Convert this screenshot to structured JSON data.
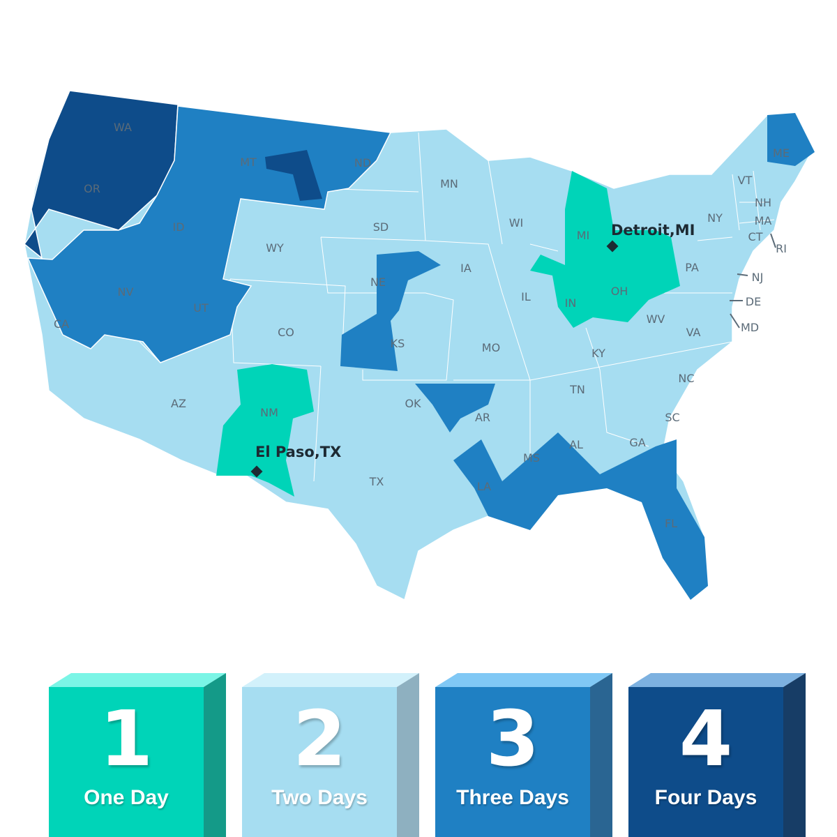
{
  "colors": {
    "one_day": "#00d4b8",
    "two_days": "#a6ddf1",
    "three_days": "#1f80c3",
    "four_days": "#0e4c8a"
  },
  "states": [
    "WA",
    "OR",
    "CA",
    "MT",
    "ID",
    "NV",
    "WY",
    "UT",
    "AZ",
    "CO",
    "NM",
    "ND",
    "SD",
    "NE",
    "KS",
    "OK",
    "TX",
    "MN",
    "IA",
    "MO",
    "AR",
    "LA",
    "WI",
    "IL",
    "MI",
    "IN",
    "OH",
    "KY",
    "TN",
    "MS",
    "AL",
    "GA",
    "FL",
    "SC",
    "NC",
    "VA",
    "WV",
    "PA",
    "NY",
    "VT",
    "NH",
    "ME",
    "MA",
    "CT",
    "RI",
    "NJ",
    "DE",
    "MD"
  ],
  "cities": [
    {
      "name": "Detroit,MI"
    },
    {
      "name": "El Paso,TX"
    }
  ],
  "legend": [
    {
      "number": "1",
      "label": "One Day"
    },
    {
      "number": "2",
      "label": "Two Days"
    },
    {
      "number": "3",
      "label": "Three Days"
    },
    {
      "number": "4",
      "label": "Four Days"
    }
  ]
}
